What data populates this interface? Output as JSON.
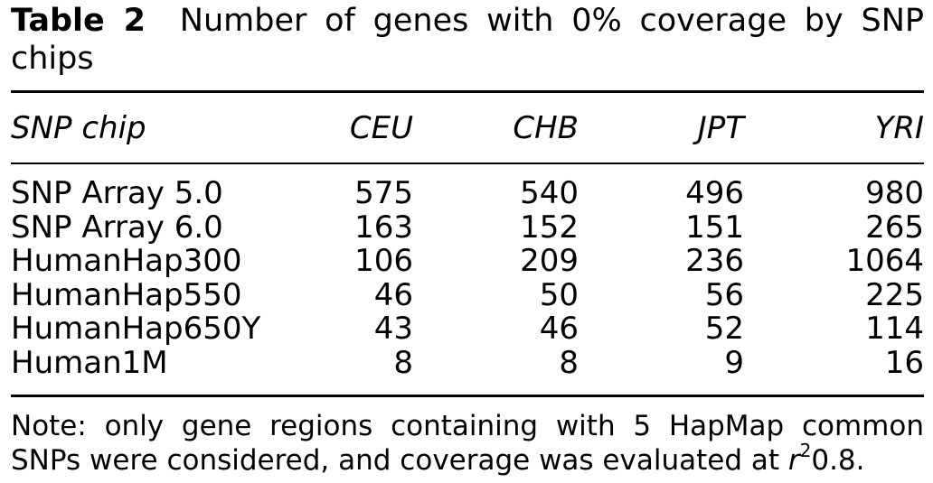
{
  "caption": {
    "label": "Table 2",
    "text": "Number of genes with 0% coverage by SNP chips"
  },
  "table": {
    "headers": [
      "SNP chip",
      "CEU",
      "CHB",
      "JPT",
      "YRI"
    ],
    "rows": [
      {
        "chip": "SNP Array 5.0",
        "ceu": "575",
        "chb": "540",
        "jpt": "496",
        "yri": "980"
      },
      {
        "chip": "SNP Array 6.0",
        "ceu": "163",
        "chb": "152",
        "jpt": "151",
        "yri": "265"
      },
      {
        "chip": "HumanHap300",
        "ceu": "106",
        "chb": "209",
        "jpt": "236",
        "yri": "1064"
      },
      {
        "chip": "HumanHap550",
        "ceu": "46",
        "chb": "50",
        "jpt": "56",
        "yri": "225"
      },
      {
        "chip": "HumanHap650Y",
        "ceu": "43",
        "chb": "46",
        "jpt": "52",
        "yri": "114"
      },
      {
        "chip": "Human1M",
        "ceu": "8",
        "chb": "8",
        "jpt": "9",
        "yri": "16"
      }
    ]
  },
  "note": {
    "text_before": "Note: only gene regions containing with 5 HapMap common SNPs were considered, and coverage was evaluated at ",
    "symbol": "r",
    "exponent": "2",
    "text_after": "0.8."
  }
}
